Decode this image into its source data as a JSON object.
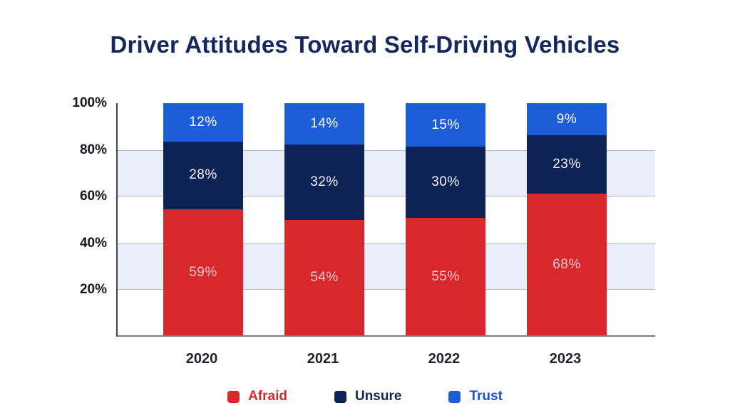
{
  "page": {
    "background_color": "#ffffff"
  },
  "chart_data": {
    "type": "bar",
    "stacked": true,
    "orientation": "vertical",
    "title": "Driver Attitudes Toward Self-Driving Vehicles",
    "title_color": "#16275d",
    "categories": [
      "2020",
      "2021",
      "2022",
      "2023"
    ],
    "series": [
      {
        "name": "Afraid",
        "values": [
          59,
          54,
          55,
          68
        ],
        "color": "#d7282d",
        "label_color": "#f3c5c8"
      },
      {
        "name": "Unsure",
        "values": [
          28,
          32,
          30,
          23
        ],
        "color": "#0e2355",
        "label_color": "#f2f4fa"
      },
      {
        "name": "Trust",
        "values": [
          12,
          14,
          15,
          9
        ],
        "color": "#1b5ed8",
        "label_color": "#ffffff"
      }
    ],
    "value_suffix": "%",
    "data_labels_shown": true,
    "xlabel": "",
    "ylabel": "",
    "ylim": [
      0,
      100
    ],
    "y_ticks": [
      {
        "value": 100,
        "label": "100%"
      },
      {
        "value": 80,
        "label": "80%"
      },
      {
        "value": 60,
        "label": "60%"
      },
      {
        "value": 40,
        "label": "40%"
      },
      {
        "value": 20,
        "label": "20%"
      }
    ],
    "grid": "horizontal-bands",
    "bands": [
      {
        "from": 60,
        "to": 80
      },
      {
        "from": 20,
        "to": 40
      }
    ],
    "band_color": "#e9eef9",
    "band_border_color": "#aab8d6",
    "legend_position": "bottom",
    "legend": [
      {
        "label": "Afraid",
        "color": "#d7282d",
        "text_color": "#cc2c32"
      },
      {
        "label": "Unsure",
        "color": "#0e2355",
        "text_color": "#16274f"
      },
      {
        "label": "Trust",
        "color": "#1b5ed8",
        "text_color": "#1c52c4"
      }
    ]
  }
}
